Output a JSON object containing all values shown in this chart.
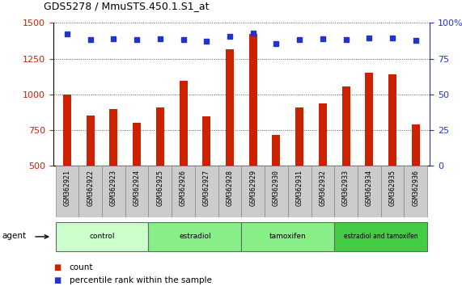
{
  "title": "GDS5278 / MmuSTS.450.1.S1_at",
  "samples": [
    "GSM362921",
    "GSM362922",
    "GSM362923",
    "GSM362924",
    "GSM362925",
    "GSM362926",
    "GSM362927",
    "GSM362928",
    "GSM362929",
    "GSM362930",
    "GSM362931",
    "GSM362932",
    "GSM362933",
    "GSM362934",
    "GSM362935",
    "GSM362936"
  ],
  "counts": [
    998,
    852,
    900,
    800,
    908,
    1095,
    845,
    1318,
    1420,
    715,
    910,
    935,
    1055,
    1150,
    1140,
    790
  ],
  "percentile_yvals": [
    1420,
    1385,
    1390,
    1385,
    1390,
    1385,
    1370,
    1405,
    1430,
    1355,
    1385,
    1390,
    1385,
    1395,
    1395,
    1375
  ],
  "ylim_left": [
    500,
    1500
  ],
  "ylim_right": [
    0,
    100
  ],
  "yticks_left": [
    500,
    750,
    1000,
    1250,
    1500
  ],
  "yticks_right": [
    0,
    25,
    50,
    75,
    100
  ],
  "bar_color": "#cc2200",
  "dot_color": "#2233cc",
  "grid_color": "#555555",
  "bg_color": "#ffffff",
  "xtick_bg": "#cccccc",
  "agent_groups": [
    {
      "label": "control",
      "start": 0,
      "end": 4,
      "color": "#ccffcc"
    },
    {
      "label": "estradiol",
      "start": 4,
      "end": 8,
      "color": "#88ee88"
    },
    {
      "label": "tamoxifen",
      "start": 8,
      "end": 12,
      "color": "#88ee88"
    },
    {
      "label": "estradiol and tamoxifen",
      "start": 12,
      "end": 16,
      "color": "#44cc44"
    }
  ],
  "agent_label": "agent",
  "legend_count_label": "count",
  "legend_percentile_label": "percentile rank within the sample",
  "ylabel_left_color": "#cc2200",
  "ylabel_right_color": "#2233cc",
  "bar_width": 0.35,
  "title_fontsize": 9
}
